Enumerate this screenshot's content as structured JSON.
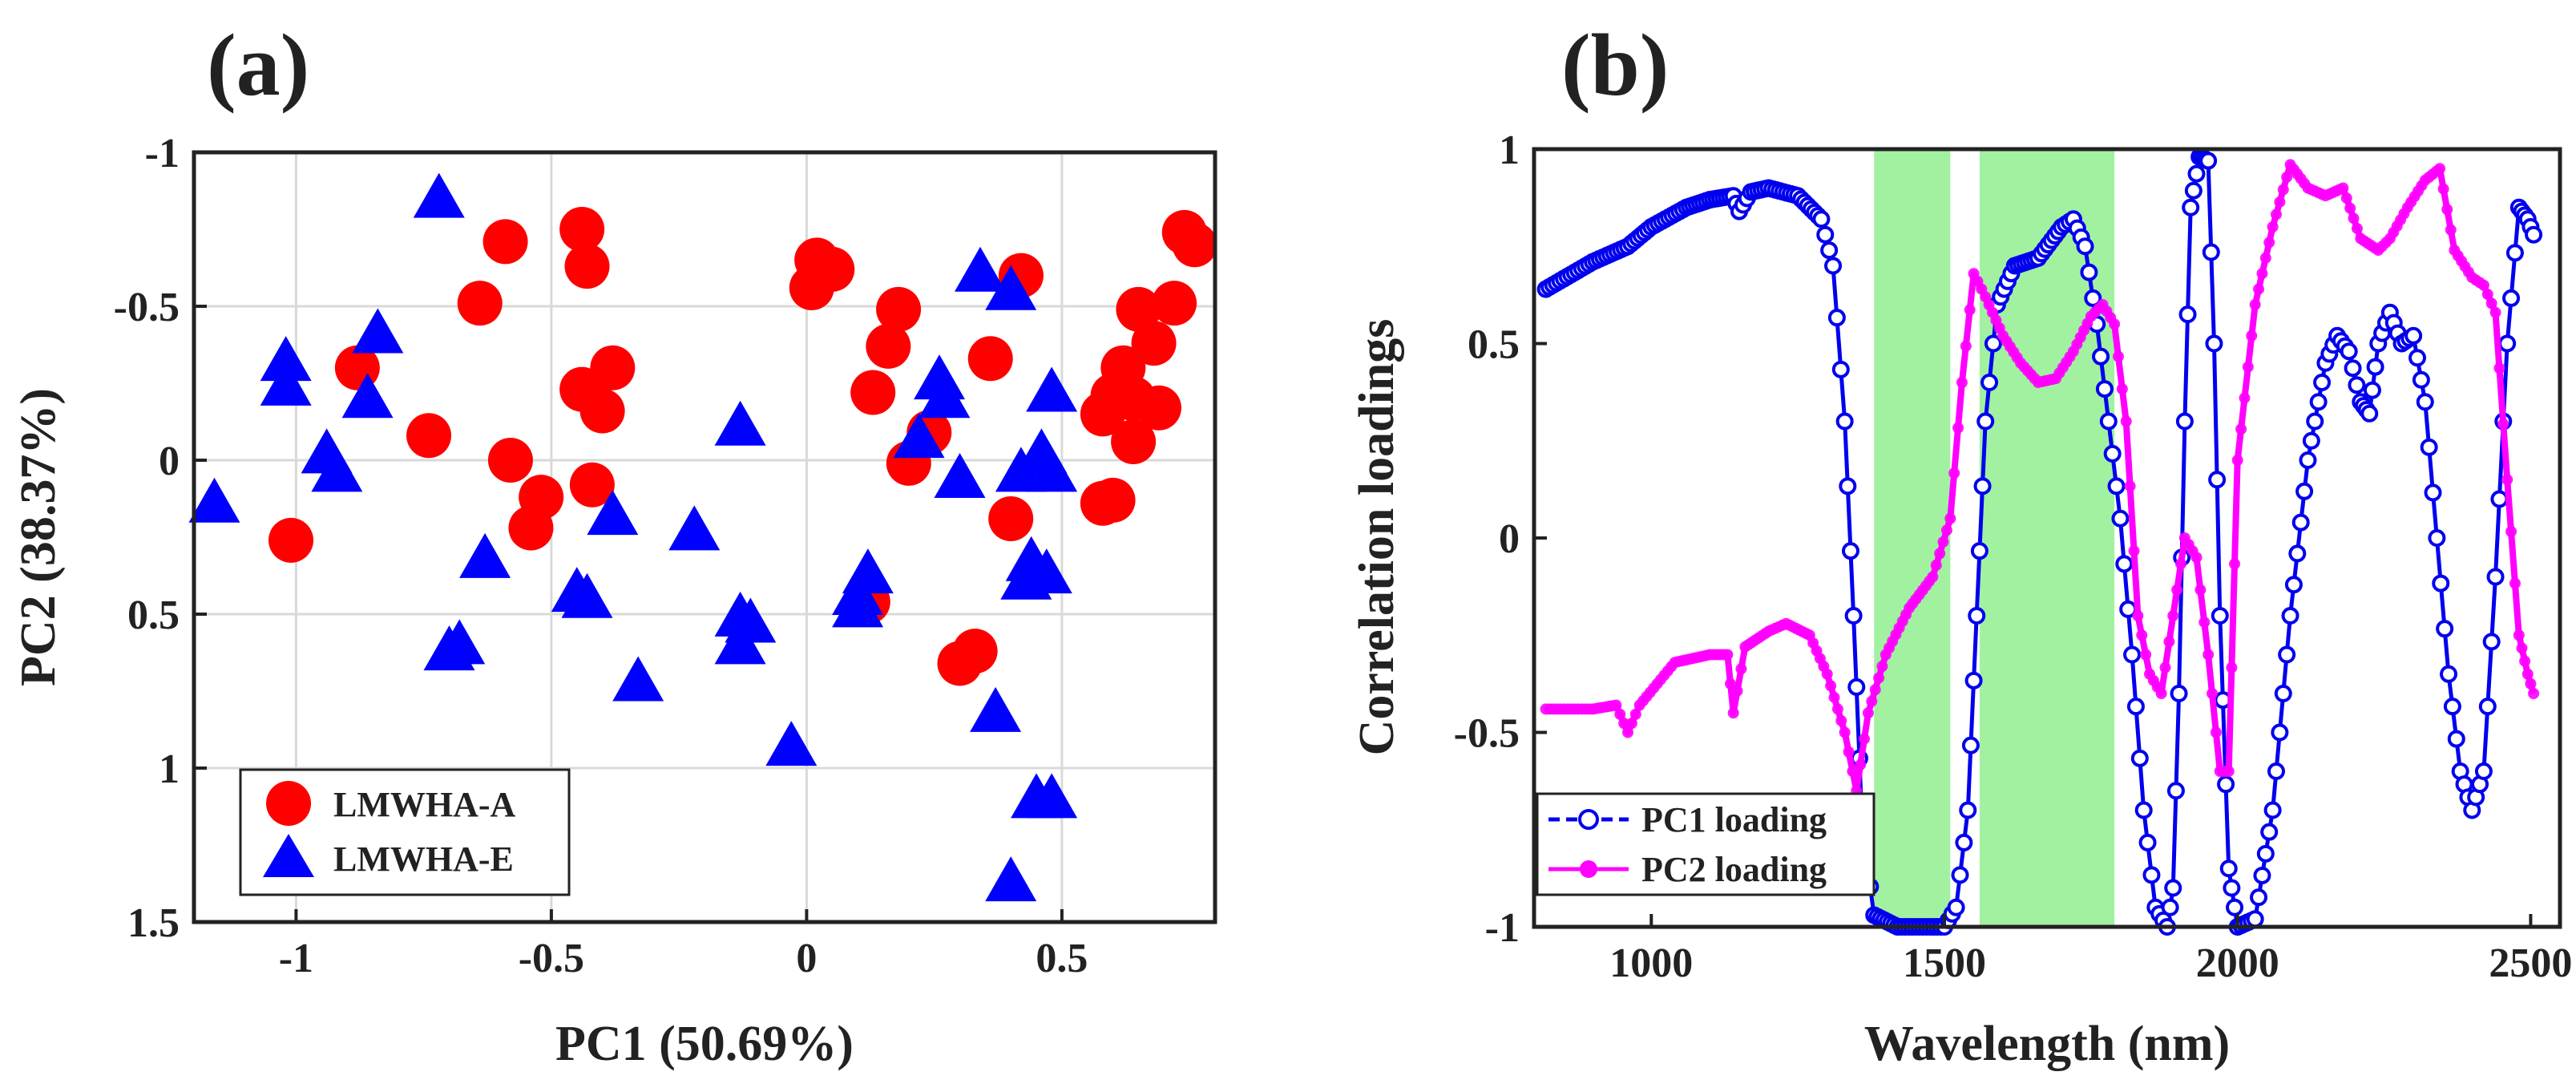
{
  "chart_data": [
    {
      "type": "scatter",
      "panel": "(a)",
      "xlabel": "PC1 (50.69%)",
      "ylabel": "PC2 (38.37%)",
      "xlim": [
        -1.2,
        0.8
      ],
      "ylim": [
        -1,
        1.5
      ],
      "y_reversed": true,
      "grid": true,
      "xticks": [
        -1,
        -0.5,
        0,
        0.5
      ],
      "yticks": [
        -1,
        -0.5,
        0,
        0.5,
        1,
        1.5
      ],
      "xtick_labels": [
        "-1",
        "-0.5",
        "0",
        "0.5"
      ],
      "ytick_labels": [
        "-1",
        "-0.5",
        "0",
        "0.5",
        "1",
        "1.5"
      ],
      "legend_position": "bottom-left",
      "series": [
        {
          "name": "LMWHA-A",
          "marker": "circle",
          "color": "#ff0000",
          "points": [
            [
              -0.44,
              -0.75
            ],
            [
              -0.43,
              -0.63
            ],
            [
              -0.59,
              -0.71
            ],
            [
              -0.64,
              -0.51
            ],
            [
              -0.44,
              -0.23
            ],
            [
              -0.38,
              -0.3
            ],
            [
              -0.4,
              -0.16
            ],
            [
              -0.88,
              -0.3
            ],
            [
              -0.74,
              -0.08
            ],
            [
              -0.58,
              0
            ],
            [
              -0.52,
              0.12
            ],
            [
              -0.54,
              0.22
            ],
            [
              -0.42,
              0.08
            ],
            [
              -1.01,
              0.26
            ],
            [
              0.02,
              -0.65
            ],
            [
              0.05,
              -0.62
            ],
            [
              0.01,
              -0.56
            ],
            [
              0.18,
              -0.49
            ],
            [
              0.16,
              -0.37
            ],
            [
              0.13,
              -0.22
            ],
            [
              0.24,
              -0.09
            ],
            [
              0.2,
              0.01
            ],
            [
              0.36,
              -0.33
            ],
            [
              0.42,
              -0.6
            ],
            [
              0.12,
              0.46
            ],
            [
              0.4,
              0.19
            ],
            [
              0.33,
              0.62
            ],
            [
              0.3,
              0.66
            ],
            [
              0.74,
              -0.74
            ],
            [
              0.76,
              -0.7
            ],
            [
              0.72,
              -0.51
            ],
            [
              0.65,
              -0.49
            ],
            [
              0.68,
              -0.38
            ],
            [
              0.62,
              -0.3
            ],
            [
              0.6,
              -0.21
            ],
            [
              0.64,
              -0.2
            ],
            [
              0.69,
              -0.17
            ],
            [
              0.58,
              -0.15
            ],
            [
              0.64,
              -0.06
            ],
            [
              0.6,
              0.13
            ],
            [
              0.58,
              0.14
            ]
          ]
        },
        {
          "name": "LMWHA-E",
          "marker": "triangle",
          "color": "#0000ff",
          "points": [
            [
              -0.72,
              -0.85
            ],
            [
              -0.84,
              -0.41
            ],
            [
              -1.02,
              -0.32
            ],
            [
              -1.02,
              -0.24
            ],
            [
              -0.86,
              -0.2
            ],
            [
              -0.94,
              -0.02
            ],
            [
              -0.92,
              0.04
            ],
            [
              -1.16,
              0.14
            ],
            [
              -0.63,
              0.32
            ],
            [
              -0.7,
              0.62
            ],
            [
              -0.68,
              0.6
            ],
            [
              -0.45,
              0.43
            ],
            [
              -0.43,
              0.45
            ],
            [
              -0.38,
              0.18
            ],
            [
              -0.33,
              0.72
            ],
            [
              -0.22,
              0.23
            ],
            [
              -0.13,
              -0.11
            ],
            [
              -0.13,
              0.51
            ],
            [
              -0.11,
              0.53
            ],
            [
              -0.13,
              0.6
            ],
            [
              -0.03,
              0.93
            ],
            [
              0.1,
              0.44
            ],
            [
              0.12,
              0.37
            ],
            [
              0.1,
              0.48
            ],
            [
              0.34,
              -0.61
            ],
            [
              0.4,
              -0.55
            ],
            [
              0.26,
              -0.26
            ],
            [
              0.27,
              -0.2
            ],
            [
              0.22,
              -0.07
            ],
            [
              0.3,
              0.06
            ],
            [
              0.42,
              0.04
            ],
            [
              0.46,
              -0.02
            ],
            [
              0.48,
              -0.22
            ],
            [
              0.48,
              0.04
            ],
            [
              0.44,
              0.33
            ],
            [
              0.47,
              0.37
            ],
            [
              0.43,
              0.39
            ],
            [
              0.37,
              0.82
            ],
            [
              0.45,
              1.1
            ],
            [
              0.48,
              1.1
            ],
            [
              0.4,
              1.37
            ]
          ]
        }
      ]
    },
    {
      "type": "line",
      "panel": "(b)",
      "xlabel": "Wavelength (nm)",
      "ylabel": "Correlation loadings",
      "xlim": [
        800,
        2550
      ],
      "ylim": [
        -1,
        1
      ],
      "grid": false,
      "xticks": [
        1000,
        1500,
        2000,
        2500
      ],
      "yticks": [
        -1,
        -0.5,
        0,
        0.5,
        1
      ],
      "xtick_labels": [
        "1000",
        "1500",
        "2000",
        "2500"
      ],
      "ytick_labels": [
        "-1",
        "-0.5",
        "0",
        "0.5",
        "1"
      ],
      "legend_position": "bottom-left",
      "highlight_bands": [
        [
          1380,
          1510
        ],
        [
          1560,
          1790
        ]
      ],
      "highlight_color": "#90ee90",
      "series": [
        {
          "name": "PC1 loading",
          "color": "#0000ee",
          "marker": "open-circle",
          "points": [
            [
              820,
              0.64
            ],
            [
              900,
              0.71
            ],
            [
              960,
              0.75
            ],
            [
              1000,
              0.8
            ],
            [
              1060,
              0.85
            ],
            [
              1100,
              0.87
            ],
            [
              1140,
              0.88
            ],
            [
              1150,
              0.84
            ],
            [
              1170,
              0.89
            ],
            [
              1200,
              0.9
            ],
            [
              1250,
              0.88
            ],
            [
              1290,
              0.82
            ],
            [
              1310,
              0.7
            ],
            [
              1330,
              0.3
            ],
            [
              1345,
              -0.2
            ],
            [
              1360,
              -0.75
            ],
            [
              1380,
              -0.97
            ],
            [
              1420,
              -1
            ],
            [
              1500,
              -1
            ],
            [
              1520,
              -0.95
            ],
            [
              1540,
              -0.7
            ],
            [
              1555,
              -0.2
            ],
            [
              1570,
              0.3
            ],
            [
              1590,
              0.6
            ],
            [
              1620,
              0.7
            ],
            [
              1660,
              0.72
            ],
            [
              1700,
              0.8
            ],
            [
              1720,
              0.82
            ],
            [
              1740,
              0.75
            ],
            [
              1760,
              0.55
            ],
            [
              1780,
              0.3
            ],
            [
              1800,
              0.05
            ],
            [
              1820,
              -0.3
            ],
            [
              1840,
              -0.7
            ],
            [
              1860,
              -0.95
            ],
            [
              1880,
              -1
            ],
            [
              1890,
              -0.9
            ],
            [
              1900,
              -0.4
            ],
            [
              1910,
              0.3
            ],
            [
              1920,
              0.85
            ],
            [
              1935,
              0.98
            ],
            [
              1950,
              0.97
            ],
            [
              1960,
              0.5
            ],
            [
              1970,
              -0.2
            ],
            [
              1985,
              -0.85
            ],
            [
              2000,
              -1
            ],
            [
              2030,
              -0.98
            ],
            [
              2060,
              -0.7
            ],
            [
              2090,
              -0.2
            ],
            [
              2120,
              0.2
            ],
            [
              2150,
              0.45
            ],
            [
              2170,
              0.52
            ],
            [
              2190,
              0.48
            ],
            [
              2210,
              0.35
            ],
            [
              2225,
              0.32
            ],
            [
              2240,
              0.5
            ],
            [
              2260,
              0.58
            ],
            [
              2280,
              0.5
            ],
            [
              2300,
              0.52
            ],
            [
              2320,
              0.35
            ],
            [
              2340,
              0
            ],
            [
              2360,
              -0.35
            ],
            [
              2380,
              -0.6
            ],
            [
              2400,
              -0.7
            ],
            [
              2420,
              -0.6
            ],
            [
              2440,
              -0.1
            ],
            [
              2460,
              0.5
            ],
            [
              2480,
              0.85
            ],
            [
              2495,
              0.82
            ],
            [
              2505,
              0.78
            ]
          ]
        },
        {
          "name": "PC2 loading",
          "color": "#ff00ff",
          "marker": "filled-dot",
          "points": [
            [
              820,
              -0.44
            ],
            [
              900,
              -0.44
            ],
            [
              940,
              -0.43
            ],
            [
              960,
              -0.5
            ],
            [
              980,
              -0.43
            ],
            [
              1040,
              -0.32
            ],
            [
              1100,
              -0.3
            ],
            [
              1130,
              -0.3
            ],
            [
              1140,
              -0.45
            ],
            [
              1160,
              -0.28
            ],
            [
              1200,
              -0.24
            ],
            [
              1230,
              -0.22
            ],
            [
              1270,
              -0.25
            ],
            [
              1300,
              -0.35
            ],
            [
              1330,
              -0.5
            ],
            [
              1350,
              -0.65
            ],
            [
              1370,
              -0.45
            ],
            [
              1400,
              -0.3
            ],
            [
              1440,
              -0.18
            ],
            [
              1480,
              -0.1
            ],
            [
              1510,
              0.05
            ],
            [
              1530,
              0.4
            ],
            [
              1550,
              0.68
            ],
            [
              1570,
              0.62
            ],
            [
              1600,
              0.52
            ],
            [
              1630,
              0.45
            ],
            [
              1660,
              0.4
            ],
            [
              1690,
              0.41
            ],
            [
              1720,
              0.48
            ],
            [
              1750,
              0.57
            ],
            [
              1770,
              0.6
            ],
            [
              1790,
              0.55
            ],
            [
              1810,
              0.3
            ],
            [
              1830,
              -0.2
            ],
            [
              1850,
              -0.35
            ],
            [
              1870,
              -0.4
            ],
            [
              1890,
              -0.2
            ],
            [
              1910,
              0
            ],
            [
              1930,
              -0.05
            ],
            [
              1950,
              -0.3
            ],
            [
              1970,
              -0.6
            ],
            [
              1985,
              -0.6
            ],
            [
              2000,
              0.2
            ],
            [
              2030,
              0.6
            ],
            [
              2060,
              0.8
            ],
            [
              2090,
              0.96
            ],
            [
              2120,
              0.9
            ],
            [
              2150,
              0.88
            ],
            [
              2180,
              0.9
            ],
            [
              2210,
              0.77
            ],
            [
              2240,
              0.74
            ],
            [
              2260,
              0.77
            ],
            [
              2290,
              0.85
            ],
            [
              2320,
              0.92
            ],
            [
              2345,
              0.95
            ],
            [
              2370,
              0.74
            ],
            [
              2400,
              0.67
            ],
            [
              2420,
              0.65
            ],
            [
              2440,
              0.58
            ],
            [
              2460,
              0.15
            ],
            [
              2480,
              -0.25
            ],
            [
              2495,
              -0.35
            ],
            [
              2505,
              -0.4
            ]
          ]
        }
      ]
    }
  ]
}
